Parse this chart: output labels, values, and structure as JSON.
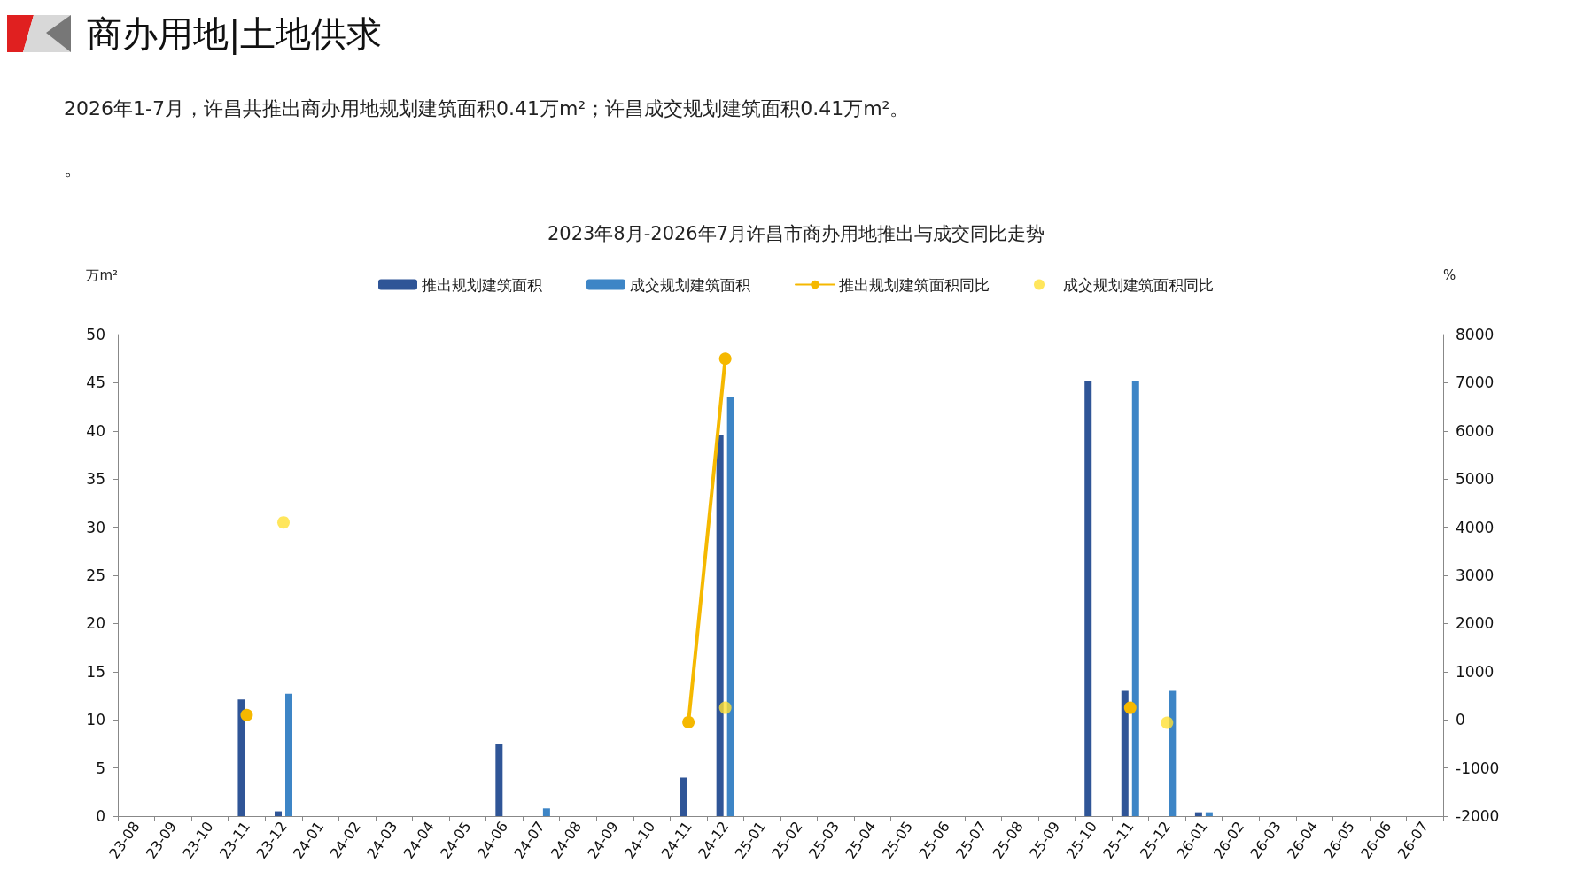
{
  "chart_data": {
    "type": "bar",
    "title": "2023年8月-2026年7月许昌市商办用地推出与成交同比走势",
    "annotations": [
      "商办用地|土地供求",
      "2026年1-7月，许昌共推出商办用地规划建筑面积0.41万m²；许昌成交规划建筑面积0.41万m²。",
      "。"
    ],
    "ylabel": "万m²",
    "y2label": "%",
    "categories": [
      "23-08",
      "23-09",
      "23-10",
      "23-11",
      "23-12",
      "24-01",
      "24-02",
      "24-03",
      "24-04",
      "24-05",
      "24-06",
      "24-07",
      "24-08",
      "24-09",
      "24-10",
      "24-11",
      "24-12",
      "25-01",
      "25-02",
      "25-03",
      "25-04",
      "25-05",
      "25-06",
      "25-07",
      "25-08",
      "25-09",
      "25-10",
      "25-11",
      "25-12",
      "26-01",
      "26-02",
      "26-03",
      "26-04",
      "26-05",
      "26-06",
      "26-07"
    ],
    "series": [
      {
        "name": "推出规划建筑面积",
        "color": "#2f5597",
        "values": [
          0,
          0,
          0,
          12.1,
          0.5,
          0,
          0,
          0,
          0,
          0,
          7.5,
          0,
          0,
          0,
          0,
          4.0,
          39.6,
          0,
          0,
          0,
          0,
          0,
          0,
          0,
          0,
          0,
          45.2,
          13.0,
          0,
          0.4,
          0,
          0,
          0,
          0,
          0,
          0
        ]
      },
      {
        "name": "成交规划建筑面积",
        "color": "#3d85c6",
        "values": [
          0,
          0,
          0,
          0,
          12.7,
          0,
          0,
          0,
          0,
          0,
          0,
          0.8,
          0,
          0,
          0,
          0,
          43.5,
          0,
          0,
          0,
          0,
          0,
          0,
          0,
          0,
          0,
          0,
          45.2,
          13.0,
          0.4,
          0,
          0,
          0,
          0,
          0,
          0
        ]
      },
      {
        "name": "推出规划建筑面积同比",
        "type": "line",
        "axis": "y2",
        "color": "#f5b800",
        "values": [
          null,
          null,
          null,
          100,
          null,
          null,
          null,
          null,
          null,
          null,
          null,
          null,
          null,
          null,
          null,
          -50,
          7500,
          null,
          null,
          null,
          null,
          null,
          null,
          null,
          null,
          null,
          null,
          250,
          null,
          null,
          null,
          null,
          null,
          null,
          null,
          null
        ]
      },
      {
        "name": "成交规划建筑面积同比",
        "type": "scatter",
        "axis": "y2",
        "color": "#ffe033",
        "values": [
          null,
          null,
          null,
          null,
          4100,
          null,
          null,
          null,
          null,
          null,
          null,
          null,
          null,
          null,
          null,
          null,
          250,
          null,
          null,
          null,
          null,
          null,
          null,
          null,
          null,
          null,
          null,
          null,
          -60,
          null,
          null,
          null,
          null,
          null,
          null,
          null
        ]
      }
    ],
    "ylim": [
      0,
      50
    ],
    "yticks": [
      0,
      5,
      10,
      15,
      20,
      25,
      30,
      35,
      40,
      45,
      50
    ],
    "y2lim": [
      -2000,
      8000
    ],
    "y2ticks": [
      -2000,
      -1000,
      0,
      1000,
      2000,
      3000,
      4000,
      5000,
      6000,
      7000,
      8000
    ],
    "grid": false,
    "legend": "top",
    "marker": "circle",
    "line_style": "solid"
  }
}
